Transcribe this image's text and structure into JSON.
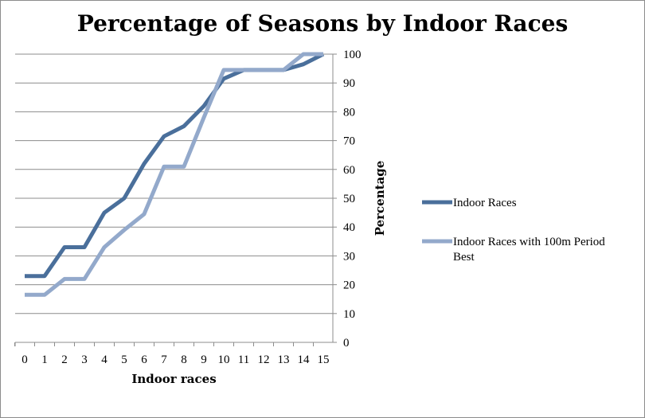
{
  "chart_data": {
    "type": "line",
    "title": "Percentage of Seasons by Indoor Races",
    "xlabel": "Indoor races",
    "ylabel": "Percentage",
    "x": [
      0,
      1,
      2,
      3,
      4,
      5,
      6,
      7,
      8,
      9,
      10,
      11,
      12,
      13,
      14,
      15
    ],
    "ylim": [
      0,
      100
    ],
    "ytick_step": 10,
    "grid": "horizontal",
    "y_axis_side": "right",
    "legend_position": "right",
    "series": [
      {
        "name": "Indoor Races",
        "color": "#4a6f9b",
        "values": [
          23,
          23,
          33,
          33,
          45,
          50,
          62,
          71.5,
          75,
          82,
          91.5,
          94.5,
          94.5,
          94.5,
          96.5,
          100
        ]
      },
      {
        "name": "Indoor Races with 100m Period Best",
        "color": "#93a9cb",
        "values": [
          16.5,
          16.5,
          22,
          22,
          33,
          39,
          44.5,
          61,
          61,
          78,
          94.5,
          94.5,
          94.5,
          94.5,
          100,
          100
        ]
      }
    ]
  }
}
